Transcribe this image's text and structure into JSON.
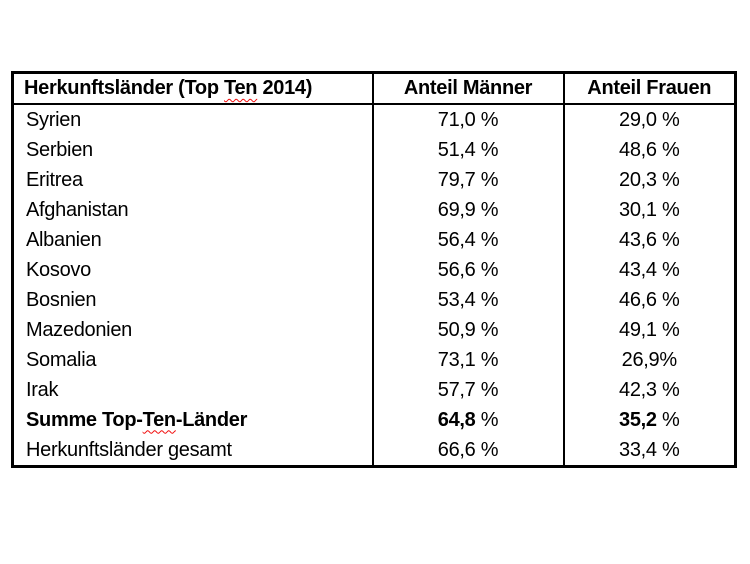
{
  "page": {
    "background_color": "#ffffff",
    "text_color": "#000000",
    "border_color": "#000000",
    "spellcheck_underline_color": "#f10c0c"
  },
  "table": {
    "header": {
      "col1_pre": "Herkunftsländer (Top ",
      "col1_misspelled": "Ten",
      "col1_post": " 2014)",
      "col2": "Anteil Männer",
      "col3": "Anteil Frauen"
    },
    "rows": [
      {
        "label": "Syrien",
        "men": "71,0 %",
        "women": "29,0 %"
      },
      {
        "label": "Serbien",
        "men": "51,4 %",
        "women": "48,6 %"
      },
      {
        "label": "Eritrea",
        "men": "79,7 %",
        "women": "20,3 %"
      },
      {
        "label": "Afghanistan",
        "men": "69,9 %",
        "women": "30,1 %"
      },
      {
        "label": "Albanien",
        "men": "56,4 %",
        "women": "43,6 %"
      },
      {
        "label": "Kosovo",
        "men": "56,6 %",
        "women": "43,4 %"
      },
      {
        "label": "Bosnien",
        "men": "53,4 %",
        "women": "46,6 %"
      },
      {
        "label": "Mazedonien",
        "men": "50,9 %",
        "women": "49,1 %"
      },
      {
        "label": "Somalia",
        "men": "73,1 %",
        "women": "26,9%"
      },
      {
        "label": "Irak",
        "men": "57,7 %",
        "women": "42,3 %"
      },
      {
        "label_pre": "Summe Top-",
        "label_misspelled": "Ten",
        "label_post": "-Länder",
        "men": "64,8 %",
        "women": "35,2 %",
        "bold": true
      },
      {
        "label": "Herkunftsländer gesamt",
        "men": "66,6 %",
        "women": "33,4 %"
      }
    ]
  }
}
